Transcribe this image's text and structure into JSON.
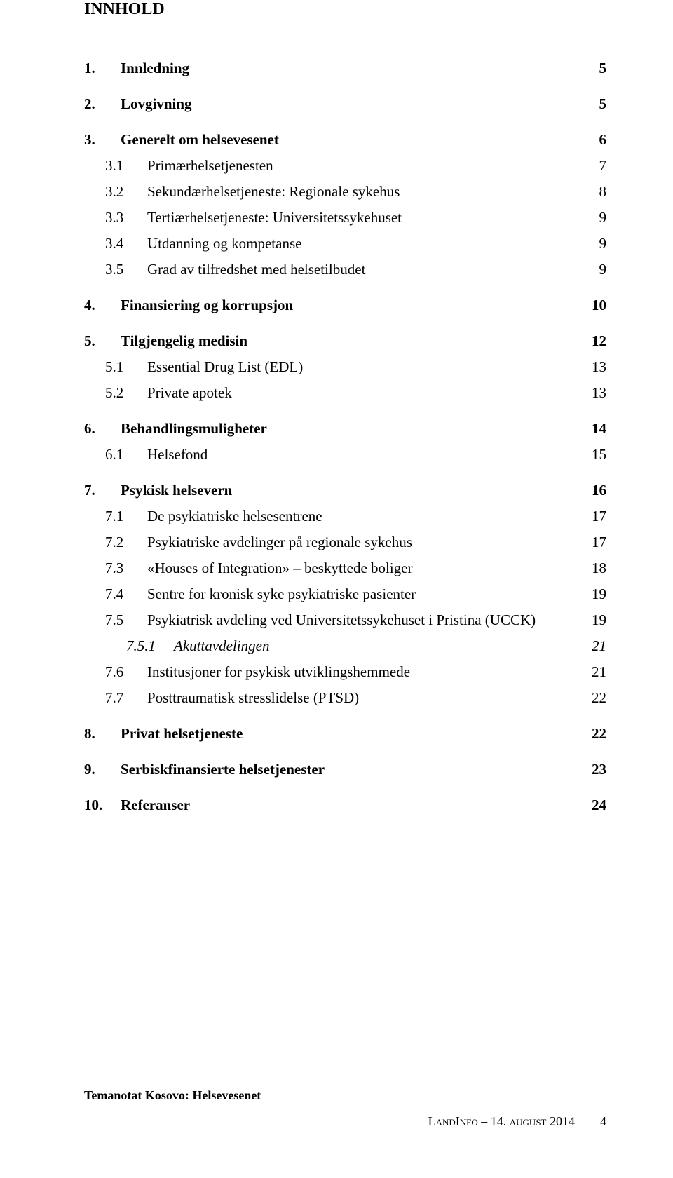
{
  "title": "INNHOLD",
  "toc": [
    {
      "level": 1,
      "num": "1.",
      "label": "Innledning",
      "page": "5"
    },
    {
      "level": 1,
      "num": "2.",
      "label": "Lovgivning",
      "page": "5"
    },
    {
      "level": 1,
      "num": "3.",
      "label": "Generelt om helsevesenet",
      "page": "6"
    },
    {
      "level": 2,
      "num": "3.1",
      "label": "Primærhelsetjenesten",
      "page": "7"
    },
    {
      "level": 2,
      "num": "3.2",
      "label": "Sekundærhelsetjeneste: Regionale sykehus",
      "page": "8"
    },
    {
      "level": 2,
      "num": "3.3",
      "label": "Tertiærhelsetjeneste: Universitetssykehuset",
      "page": "9"
    },
    {
      "level": 2,
      "num": "3.4",
      "label": "Utdanning og kompetanse",
      "page": "9"
    },
    {
      "level": 2,
      "num": "3.5",
      "label": "Grad av tilfredshet med helsetilbudet",
      "page": "9"
    },
    {
      "level": 1,
      "num": "4.",
      "label": "Finansiering og korrupsjon",
      "page": "10"
    },
    {
      "level": 1,
      "num": "5.",
      "label": "Tilgjengelig medisin",
      "page": "12"
    },
    {
      "level": 2,
      "num": "5.1",
      "label": "Essential Drug List (EDL)",
      "page": "13"
    },
    {
      "level": 2,
      "num": "5.2",
      "label": "Private apotek",
      "page": "13"
    },
    {
      "level": 1,
      "num": "6.",
      "label": "Behandlingsmuligheter",
      "page": "14"
    },
    {
      "level": 2,
      "num": "6.1",
      "label": "Helsefond",
      "page": "15"
    },
    {
      "level": 1,
      "num": "7.",
      "label": "Psykisk helsevern",
      "page": "16"
    },
    {
      "level": 2,
      "num": "7.1",
      "label": "De psykiatriske helsesentrene",
      "page": "17"
    },
    {
      "level": 2,
      "num": "7.2",
      "label": "Psykiatriske avdelinger på regionale sykehus",
      "page": "17"
    },
    {
      "level": 2,
      "num": "7.3",
      "label": "«Houses of Integration» – beskyttede boliger",
      "page": "18"
    },
    {
      "level": 2,
      "num": "7.4",
      "label": "Sentre for kronisk syke psykiatriske pasienter",
      "page": "19"
    },
    {
      "level": 2,
      "num": "7.5",
      "label": "Psykiatrisk avdeling ved Universitetssykehuset i Pristina (UCCK)",
      "page": "19"
    },
    {
      "level": 3,
      "num": "7.5.1",
      "label": "Akuttavdelingen",
      "page": "21"
    },
    {
      "level": 2,
      "num": "7.6",
      "label": "Institusjoner for psykisk utviklingshemmede",
      "page": "21"
    },
    {
      "level": 2,
      "num": "7.7",
      "label": "Posttraumatisk stresslidelse (PTSD)",
      "page": "22"
    },
    {
      "level": 1,
      "num": "8.",
      "label": "Privat helsetjeneste",
      "page": "22"
    },
    {
      "level": 1,
      "num": "9.",
      "label": "Serbiskfinansierte helsetjenester",
      "page": "23"
    },
    {
      "level": 1,
      "num": "10.",
      "label": "Referanser",
      "page": "24"
    }
  ],
  "footer": {
    "topic": "Temanotat Kosovo: Helsevesenet",
    "org": "LandInfo",
    "date_sep": " – ",
    "date": "14. august 2014",
    "pagenum": "4"
  }
}
